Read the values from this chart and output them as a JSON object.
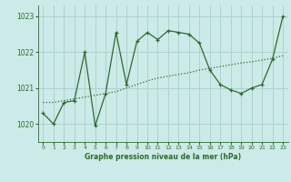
{
  "title": "Graphe pression niveau de la mer (hPa)",
  "bg_color": "#cceae7",
  "grid_color": "#aad4d0",
  "line_color": "#2d6b2d",
  "xlim": [
    -0.5,
    23.5
  ],
  "ylim": [
    1019.5,
    1023.3
  ],
  "yticks": [
    1020,
    1021,
    1022,
    1023
  ],
  "xticks": [
    0,
    1,
    2,
    3,
    4,
    5,
    6,
    7,
    8,
    9,
    10,
    11,
    12,
    13,
    14,
    15,
    16,
    17,
    18,
    19,
    20,
    21,
    22,
    23
  ],
  "series1_x": [
    0,
    1,
    2,
    3,
    4,
    5,
    6,
    7,
    8,
    9,
    10,
    11,
    12,
    13,
    14,
    15,
    16,
    17,
    18,
    19,
    20,
    21,
    22,
    23
  ],
  "series1_y": [
    1020.3,
    1020.0,
    1020.6,
    1020.65,
    1022.0,
    1019.95,
    1020.85,
    1022.55,
    1021.1,
    1022.3,
    1022.55,
    1022.35,
    1022.6,
    1022.55,
    1022.5,
    1022.25,
    1021.5,
    1021.1,
    1020.95,
    1020.85,
    1021.0,
    1021.1,
    1021.8,
    1023.0
  ],
  "series2_x": [
    0,
    1,
    2,
    3,
    4,
    5,
    6,
    7,
    8,
    9,
    10,
    11,
    12,
    13,
    14,
    15,
    16,
    17,
    18,
    19,
    20,
    21,
    22,
    23
  ],
  "series2_y": [
    1020.6,
    1020.6,
    1020.65,
    1020.7,
    1020.75,
    1020.8,
    1020.85,
    1020.9,
    1021.0,
    1021.1,
    1021.2,
    1021.28,
    1021.33,
    1021.38,
    1021.43,
    1021.5,
    1021.55,
    1021.6,
    1021.65,
    1021.7,
    1021.73,
    1021.78,
    1021.83,
    1021.9
  ]
}
